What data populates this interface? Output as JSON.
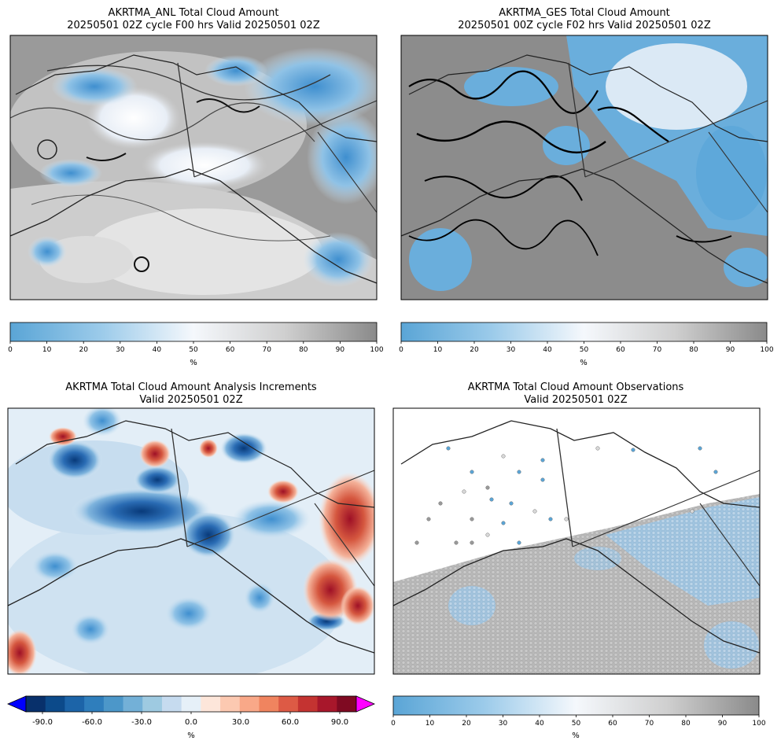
{
  "panels": {
    "anl": {
      "title_line1": "AKRTMA_ANL Total Cloud Amount",
      "title_line2": "20250501 02Z cycle F00 hrs Valid 20250501 02Z"
    },
    "ges": {
      "title_line1": "AKRTMA_GES Total Cloud Amount",
      "title_line2": "20250501 00Z cycle F02 hrs Valid 20250501 02Z"
    },
    "inc": {
      "title_line1": "AKRTMA Total Cloud Amount Analysis Increments",
      "title_line2": "Valid 20250501 02Z"
    },
    "obs": {
      "title_line1": "AKRTMA Total Cloud Amount Observations",
      "title_line2": "Valid 20250501 02Z"
    }
  },
  "colors": {
    "cloud_low": "#5aa5d6",
    "cloud_mid": "#f5f8fc",
    "cloud_high": "#8a8a8a",
    "inc_neg_end": "#0a2c68",
    "inc_pos_end": "#6b0a1d",
    "extend_neg": "#0000ff",
    "extend_pos": "#ff00ff",
    "land_gray": "#8c8c8c",
    "coast": "#222222"
  },
  "chart_data": [
    {
      "type": "heatmap",
      "name": "anl",
      "title": "AKRTMA_ANL Total Cloud Amount",
      "subtitle": "20250501 02Z cycle F00 hrs Valid 20250501 02Z",
      "colorbar": {
        "label": "%",
        "range": [
          0,
          100
        ],
        "ticks": [
          "0",
          "10",
          "20",
          "30",
          "40",
          "50",
          "60",
          "70",
          "80",
          "90",
          "100"
        ]
      }
    },
    {
      "type": "heatmap",
      "name": "ges",
      "title": "AKRTMA_GES Total Cloud Amount",
      "subtitle": "20250501 00Z cycle F02 hrs Valid 20250501 02Z",
      "colorbar": {
        "label": "%",
        "range": [
          0,
          100
        ],
        "ticks": [
          "0",
          "10",
          "20",
          "30",
          "40",
          "50",
          "60",
          "70",
          "80",
          "90",
          "100"
        ]
      }
    },
    {
      "type": "heatmap",
      "name": "increments",
      "title": "AKRTMA Total Cloud Amount Analysis Increments",
      "subtitle": "Valid 20250501 02Z",
      "colorbar": {
        "label": "%",
        "range": [
          -100,
          100
        ],
        "extend": "both",
        "ticks": [
          "-90.0",
          "-60.0",
          "-30.0",
          "0.0",
          "30.0",
          "60.0",
          "90.0"
        ]
      }
    },
    {
      "type": "scatter",
      "name": "observations",
      "title": "AKRTMA Total Cloud Amount Observations",
      "subtitle": "Valid 20250501 02Z",
      "colorbar": {
        "label": "%",
        "range": [
          0,
          100
        ],
        "ticks": [
          "0",
          "10",
          "20",
          "30",
          "40",
          "50",
          "60",
          "70",
          "80",
          "90",
          "100"
        ]
      }
    }
  ]
}
